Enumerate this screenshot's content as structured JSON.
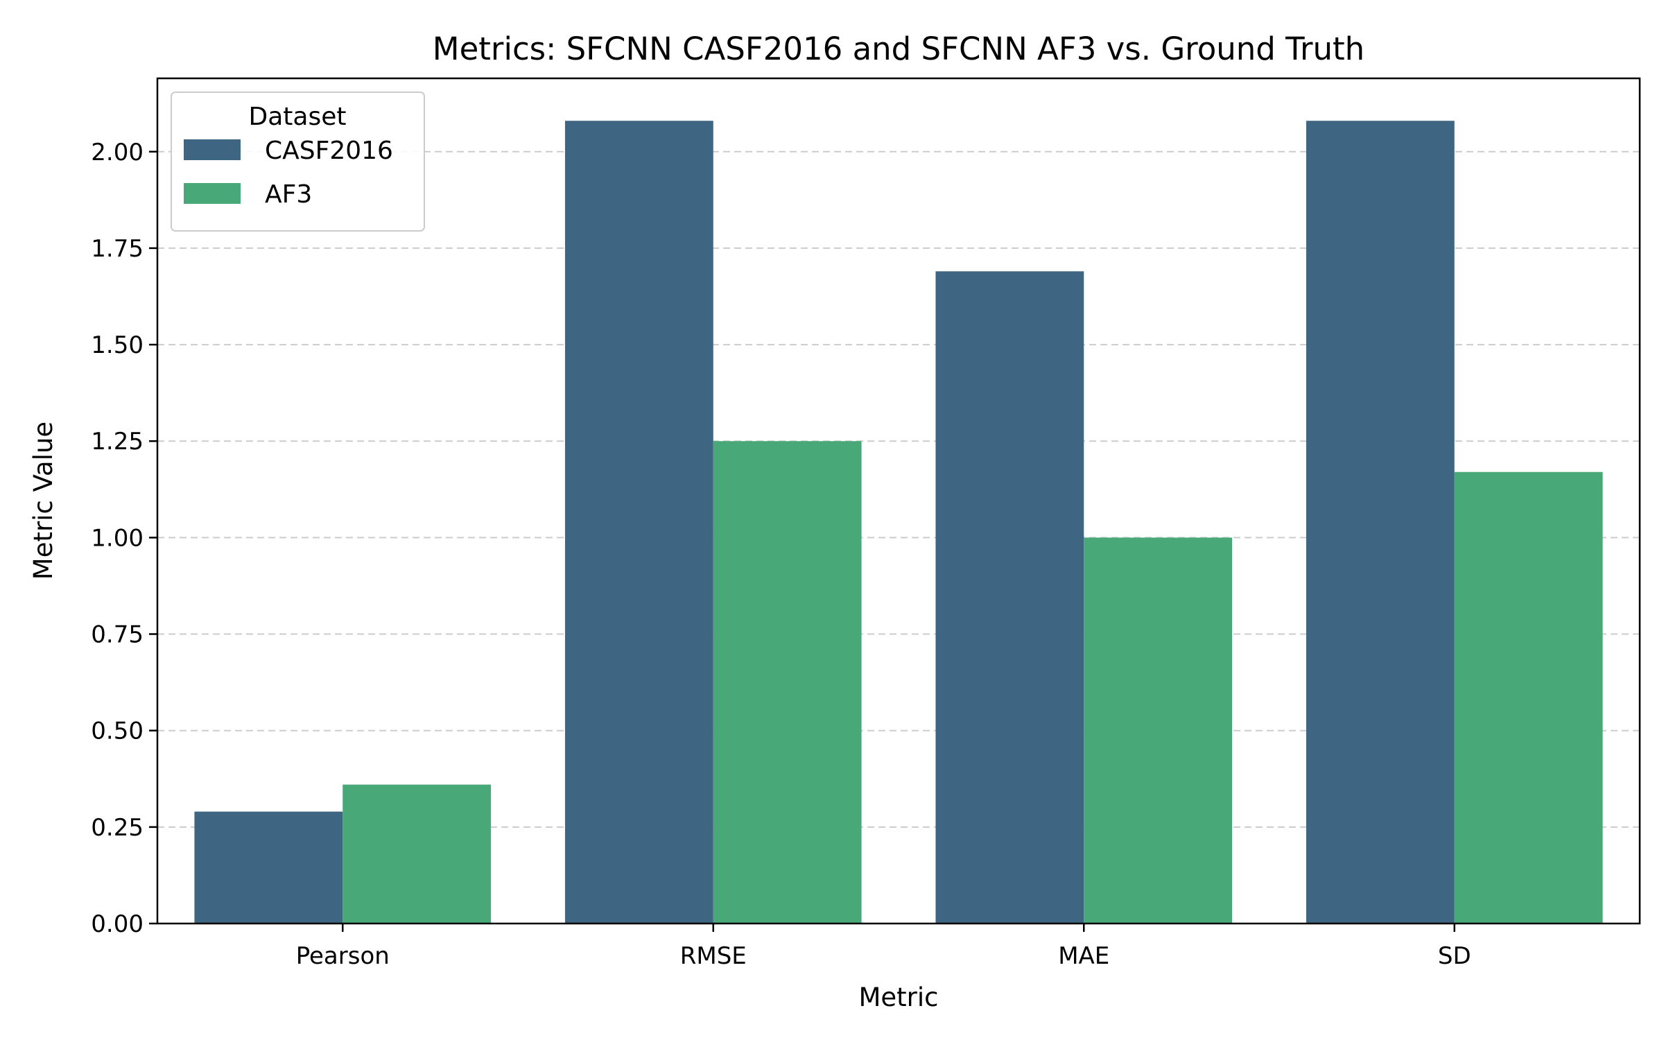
{
  "chart_data": {
    "type": "bar",
    "title": "Metrics: SFCNN CASF2016 and SFCNN AF3 vs. Ground Truth",
    "xlabel": "Metric",
    "ylabel": "Metric Value",
    "categories": [
      "Pearson",
      "RMSE",
      "MAE",
      "SD"
    ],
    "series": [
      {
        "name": "CASF2016",
        "color": "#3e6582",
        "values": [
          0.29,
          2.08,
          1.69,
          2.08
        ]
      },
      {
        "name": "AF3",
        "color": "#48a878",
        "values": [
          0.36,
          1.25,
          1.0,
          1.17
        ]
      }
    ],
    "ylim": [
      0,
      2.19
    ],
    "yticks": [
      0.0,
      0.25,
      0.5,
      0.75,
      1.0,
      1.25,
      1.5,
      1.75,
      2.0
    ],
    "ytick_labels": [
      "0.00",
      "0.25",
      "0.50",
      "0.75",
      "1.00",
      "1.25",
      "1.50",
      "1.75",
      "2.00"
    ],
    "grid": {
      "y": true,
      "style": "dashed",
      "color": "#cccccc"
    },
    "legend": {
      "title": "Dataset",
      "placement": "top-left"
    }
  }
}
